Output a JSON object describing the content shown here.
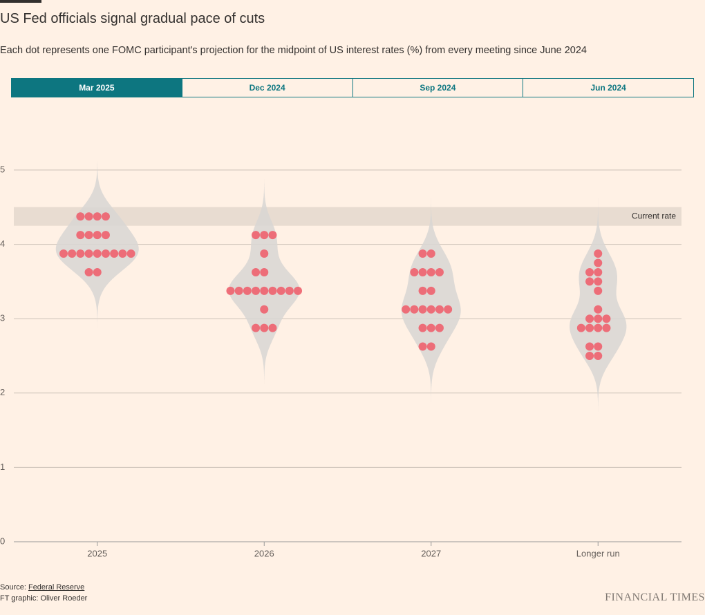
{
  "header": {
    "title": "US Fed officials signal gradual pace of cuts",
    "subtitle": "Each dot represents one FOMC participant's projection for the midpoint of US interest rates (%) from every meeting since June 2024"
  },
  "tabs": [
    "Mar 2025",
    "Dec 2024",
    "Sep 2024",
    "Jun 2024"
  ],
  "active_tab": 0,
  "chart_data": {
    "type": "dotplot",
    "categories": [
      "2025",
      "2026",
      "2027",
      "Longer run"
    ],
    "values": [
      [
        4.375,
        4.375,
        4.375,
        4.375,
        4.125,
        4.125,
        4.125,
        4.125,
        3.875,
        3.875,
        3.875,
        3.875,
        3.875,
        3.875,
        3.875,
        3.875,
        3.875,
        3.625,
        3.625
      ],
      [
        4.125,
        4.125,
        4.125,
        3.875,
        3.625,
        3.625,
        3.375,
        3.375,
        3.375,
        3.375,
        3.375,
        3.375,
        3.375,
        3.375,
        3.375,
        3.125,
        2.875,
        2.875,
        2.875
      ],
      [
        3.875,
        3.875,
        3.625,
        3.625,
        3.625,
        3.625,
        3.375,
        3.375,
        3.125,
        3.125,
        3.125,
        3.125,
        3.125,
        3.125,
        2.875,
        2.875,
        2.875,
        2.625,
        2.625
      ],
      [
        3.875,
        3.75,
        3.625,
        3.625,
        3.5,
        3.5,
        3.375,
        3.125,
        3.0,
        3.0,
        3.0,
        2.875,
        2.875,
        2.875,
        2.875,
        2.625,
        2.625,
        2.5,
        2.5
      ]
    ],
    "color": "#ee6470",
    "violin_color": "#d8d6d4",
    "current_rate": {
      "label": "Current rate",
      "range": [
        4.25,
        4.5
      ]
    },
    "ylim": [
      0,
      5
    ],
    "yticks": [
      0,
      1,
      2,
      3,
      4,
      5
    ],
    "grid": true
  },
  "footer": {
    "source_prefix": "Source: ",
    "source": "Federal Reserve",
    "credit": "FT graphic: Oliver Roeder",
    "logo": "FINANCIAL TIMES"
  }
}
